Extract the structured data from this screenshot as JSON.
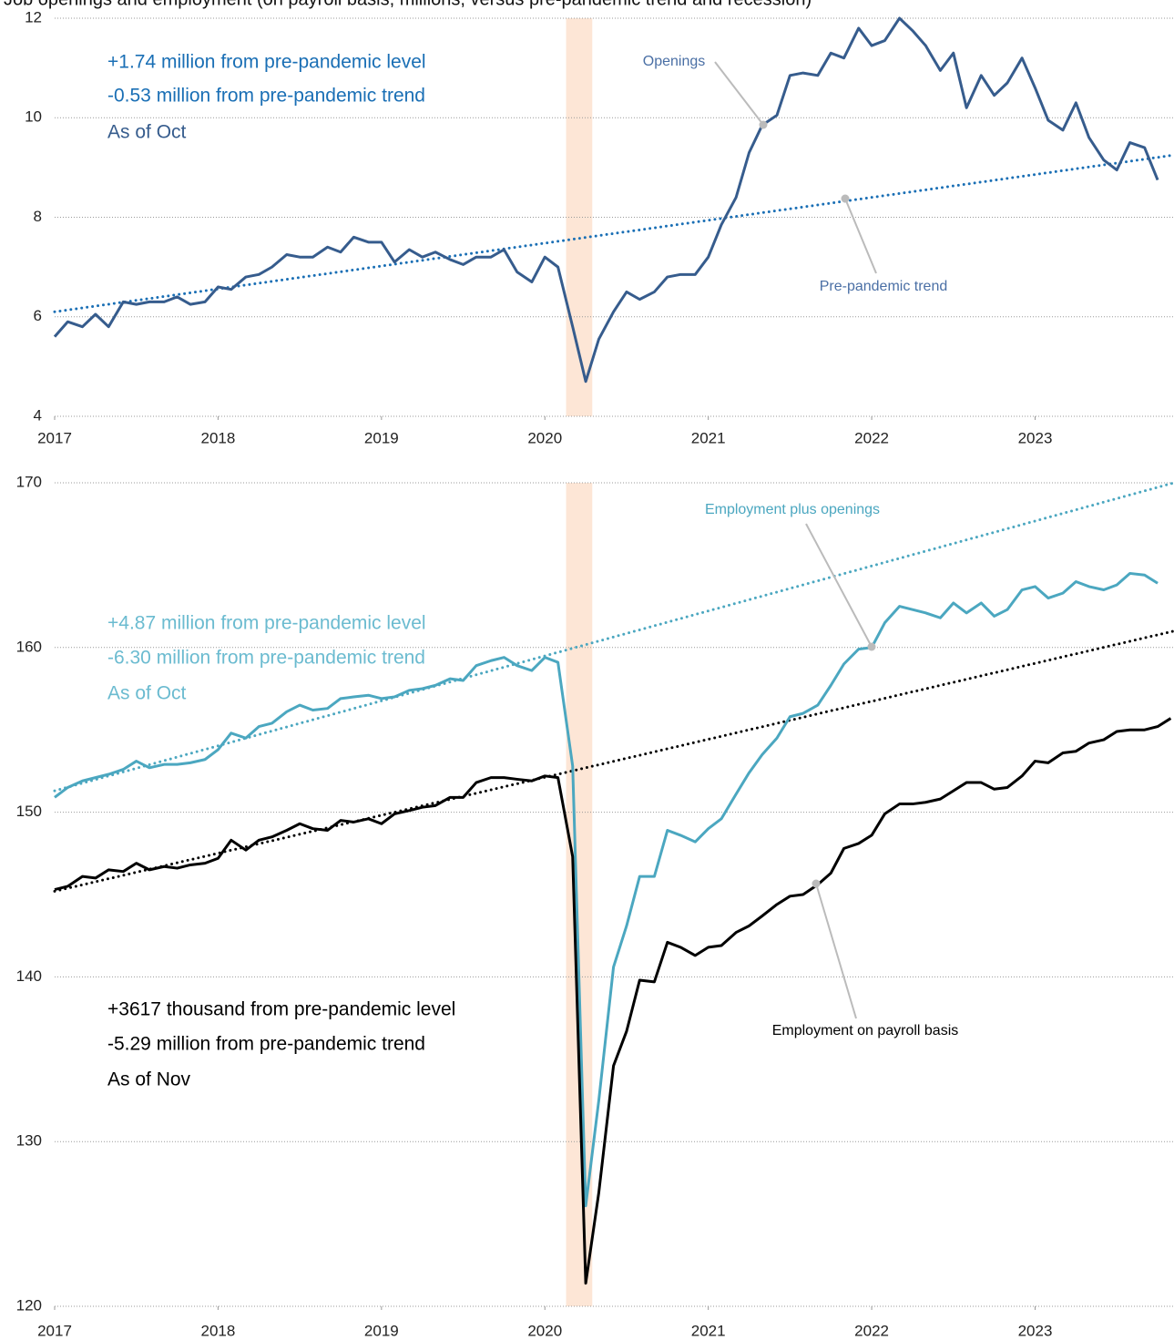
{
  "chart_data": [
    {
      "type": "line",
      "title": "Job openings and employment (on payroll basis, millions, versus pre-pandemic trend and recession)",
      "x": [
        2017,
        2017.08,
        2017.17,
        2017.25,
        2017.33,
        2017.42,
        2017.5,
        2017.58,
        2017.67,
        2017.75,
        2017.83,
        2017.92,
        2018,
        2018.08,
        2018.17,
        2018.25,
        2018.33,
        2018.42,
        2018.5,
        2018.58,
        2018.67,
        2018.75,
        2018.83,
        2018.92,
        2019,
        2019.08,
        2019.17,
        2019.25,
        2019.33,
        2019.42,
        2019.5,
        2019.58,
        2019.67,
        2019.75,
        2019.83,
        2019.92,
        2020,
        2020.08,
        2020.17,
        2020.25,
        2020.33,
        2020.42,
        2020.5,
        2020.58,
        2020.67,
        2020.75,
        2020.83,
        2020.92,
        2021,
        2021.08,
        2021.17,
        2021.25,
        2021.33,
        2021.42,
        2021.5,
        2021.58,
        2021.67,
        2021.75,
        2021.83,
        2021.92,
        2022,
        2022.08,
        2022.17,
        2022.25,
        2022.33,
        2022.42,
        2022.5,
        2022.58,
        2022.67,
        2022.75,
        2022.83,
        2022.92,
        2023,
        2023.08,
        2023.17,
        2023.25,
        2023.33,
        2023.42,
        2023.5,
        2023.58,
        2023.67,
        2023.75
      ],
      "xlim": [
        2017,
        2023.85
      ],
      "xticks": [
        2017,
        2018,
        2019,
        2020,
        2021,
        2022,
        2023
      ],
      "ylim": [
        4,
        12
      ],
      "yticks": [
        4,
        6,
        8,
        10,
        12
      ],
      "grid": true,
      "recession": [
        2020.13,
        2020.29
      ],
      "series": [
        {
          "name": "Openings",
          "color": "#365c8d",
          "values": [
            5.6,
            5.9,
            5.8,
            6.05,
            5.8,
            6.3,
            6.25,
            6.3,
            6.3,
            6.4,
            6.25,
            6.3,
            6.6,
            6.55,
            6.8,
            6.85,
            7.0,
            7.25,
            7.2,
            7.2,
            7.4,
            7.3,
            7.6,
            7.5,
            7.5,
            7.1,
            7.35,
            7.2,
            7.3,
            7.15,
            7.05,
            7.2,
            7.2,
            7.35,
            6.9,
            6.7,
            7.2,
            7.0,
            5.8,
            4.7,
            5.55,
            6.1,
            6.5,
            6.35,
            6.5,
            6.8,
            6.85,
            6.85,
            7.2,
            7.85,
            8.4,
            9.3,
            9.85,
            10.05,
            10.85,
            10.9,
            10.85,
            11.3,
            11.2,
            11.8,
            11.45,
            11.55,
            12.0,
            11.75,
            11.45,
            10.95,
            11.3,
            10.2,
            10.85,
            10.45,
            10.7,
            11.2,
            10.6,
            9.95,
            9.75,
            10.3,
            9.6,
            9.15,
            8.95,
            9.5,
            9.4,
            8.75
          ]
        }
      ],
      "trends": [
        {
          "name": "Pre-pandemic trend",
          "color": "#1a6fb5",
          "start": 6.1,
          "end": 9.25
        }
      ],
      "annotations": [
        {
          "text": "+1.74 million from pre-pandemic level",
          "color": "#1a6fb5"
        },
        {
          "text": "-0.53 million from pre-pandemic trend",
          "color": "#1a6fb5"
        },
        {
          "text": "As of Oct",
          "color": "#365c8d"
        }
      ]
    },
    {
      "type": "line",
      "x": [
        2017,
        2017.08,
        2017.17,
        2017.25,
        2017.33,
        2017.42,
        2017.5,
        2017.58,
        2017.67,
        2017.75,
        2017.83,
        2017.92,
        2018,
        2018.08,
        2018.17,
        2018.25,
        2018.33,
        2018.42,
        2018.5,
        2018.58,
        2018.67,
        2018.75,
        2018.83,
        2018.92,
        2019,
        2019.08,
        2019.17,
        2019.25,
        2019.33,
        2019.42,
        2019.5,
        2019.58,
        2019.67,
        2019.75,
        2019.83,
        2019.92,
        2020,
        2020.08,
        2020.17,
        2020.25,
        2020.33,
        2020.42,
        2020.5,
        2020.58,
        2020.67,
        2020.75,
        2020.83,
        2020.92,
        2021,
        2021.08,
        2021.17,
        2021.25,
        2021.33,
        2021.42,
        2021.5,
        2021.58,
        2021.67,
        2021.75,
        2021.83,
        2021.92,
        2022,
        2022.08,
        2022.17,
        2022.25,
        2022.33,
        2022.42,
        2022.5,
        2022.58,
        2022.67,
        2022.75,
        2022.83,
        2022.92,
        2023,
        2023.08,
        2023.17,
        2023.25,
        2023.33,
        2023.42,
        2023.5,
        2023.58,
        2023.67,
        2023.75,
        2023.83
      ],
      "xlim": [
        2017,
        2023.85
      ],
      "xticks": [
        2017,
        2018,
        2019,
        2020,
        2021,
        2022,
        2023
      ],
      "ylim": [
        120,
        170
      ],
      "yticks": [
        120,
        130,
        140,
        150,
        160,
        170
      ],
      "grid": true,
      "recession": [
        2020.13,
        2020.29
      ],
      "series": [
        {
          "name": "Employment plus openings",
          "color": "#4ba7c0",
          "values": [
            150.9,
            151.5,
            151.9,
            152.1,
            152.3,
            152.6,
            153.1,
            152.7,
            152.9,
            152.9,
            153.0,
            153.2,
            153.8,
            154.8,
            154.5,
            155.2,
            155.4,
            156.1,
            156.5,
            156.2,
            156.3,
            156.9,
            157.0,
            157.1,
            156.9,
            157.0,
            157.4,
            157.5,
            157.7,
            158.1,
            158.0,
            158.9,
            159.2,
            159.4,
            158.9,
            158.6,
            159.4,
            159.1,
            152.8,
            126.1,
            132.5,
            140.6,
            143.1,
            146.1,
            146.1,
            148.9,
            148.6,
            148.2,
            149.0,
            149.6,
            151.1,
            152.4,
            153.5,
            154.5,
            155.8,
            156.0,
            156.5,
            157.7,
            159.0,
            159.9,
            160.0,
            161.5,
            162.5,
            162.3,
            162.1,
            161.8,
            162.7,
            162.1,
            162.7,
            161.9,
            162.3,
            163.5,
            163.7,
            163.0,
            163.3,
            164.0,
            163.7,
            163.5,
            163.8,
            164.5,
            164.4,
            163.9,
            null
          ]
        },
        {
          "name": "Employment on payroll basis",
          "color": "#000000",
          "values": [
            145.3,
            145.5,
            146.1,
            146.0,
            146.5,
            146.4,
            146.9,
            146.5,
            146.7,
            146.6,
            146.8,
            146.9,
            147.2,
            148.3,
            147.7,
            148.3,
            148.5,
            148.9,
            149.3,
            149.0,
            148.9,
            149.5,
            149.4,
            149.6,
            149.3,
            149.9,
            150.1,
            150.3,
            150.4,
            150.9,
            150.9,
            151.8,
            152.1,
            152.1,
            152.0,
            151.9,
            152.2,
            152.1,
            147.3,
            121.4,
            126.9,
            134.6,
            136.7,
            139.8,
            139.7,
            142.1,
            141.8,
            141.3,
            141.8,
            141.9,
            142.7,
            143.1,
            143.7,
            144.4,
            144.9,
            145.0,
            145.6,
            146.3,
            147.8,
            148.1,
            148.6,
            149.9,
            150.5,
            150.5,
            150.6,
            150.8,
            151.3,
            151.8,
            151.8,
            151.4,
            151.5,
            152.2,
            153.1,
            153.0,
            153.6,
            153.7,
            154.2,
            154.4,
            154.9,
            155.0,
            155.0,
            155.2,
            155.7
          ]
        }
      ],
      "trends": [
        {
          "color": "#4ba7c0",
          "start": 151.3,
          "end": 170
        },
        {
          "color": "#000000",
          "start": 145.2,
          "end": 161.0
        }
      ],
      "annotations": [
        {
          "text": "+4.87 million from pre-pandemic level",
          "color": "#6bbbd0"
        },
        {
          "text": "-6.30 million from pre-pandemic trend",
          "color": "#6bbbd0"
        },
        {
          "text": "As of Oct",
          "color": "#6bbbd0"
        },
        {
          "text": "+3617 thousand from pre-pandemic level",
          "color": "#000000"
        },
        {
          "text": "-5.29 million from pre-pandemic trend",
          "color": "#000000"
        },
        {
          "text": "As of Nov",
          "color": "#000000"
        }
      ]
    }
  ]
}
